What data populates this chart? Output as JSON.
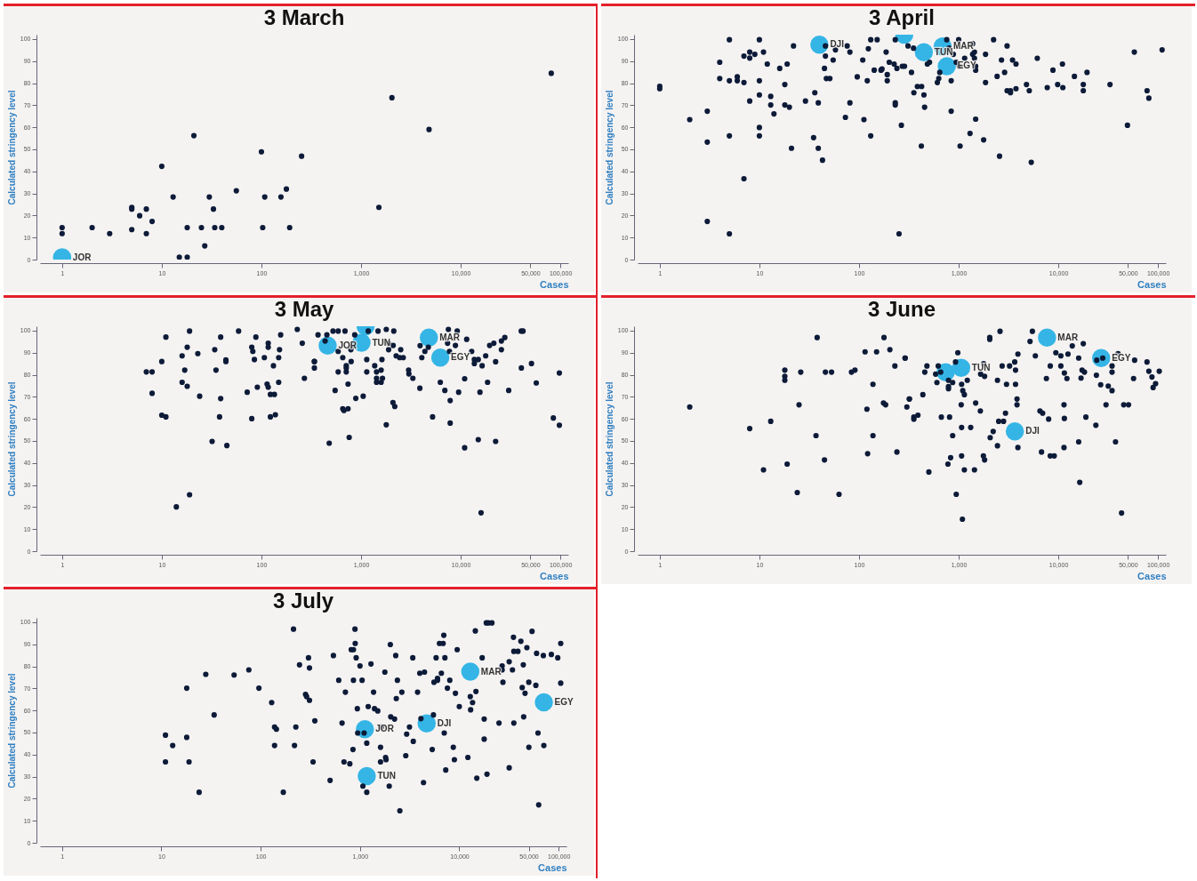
{
  "chart_data": [
    {
      "type": "scatter",
      "title": "3 March",
      "xlabel": "Cases",
      "ylabel": "Calculated stringency level",
      "log": "x",
      "marker": "circle",
      "xlim": [
        0.6,
        120000
      ],
      "ylim": [
        0,
        102
      ],
      "xticks": [
        1,
        10,
        100,
        {
          "value": 1000,
          "label": "1,000"
        },
        {
          "value": 10000,
          "label": "10,000"
        },
        {
          "value": 50000,
          "label": "50,000"
        },
        {
          "value": 100000,
          "label": "100,000"
        }
      ],
      "yticks": [
        0,
        10,
        20,
        30,
        40,
        50,
        60,
        70,
        80,
        90,
        100
      ],
      "series": [
        {
          "color": "#35b5e5",
          "x": [
            1
          ],
          "values": [
            1
          ]
        },
        {
          "color": "#0d1b38",
          "x": [
            1,
            1,
            2,
            3,
            5,
            5,
            5,
            6,
            7,
            7,
            8,
            10,
            13,
            15,
            18,
            18,
            21,
            25,
            27,
            30,
            33,
            34,
            40,
            56,
            100,
            103,
            108,
            157,
            178,
            192,
            253,
            1510,
            2040,
            4810,
            81000
          ],
          "values": [
            14.5,
            11.8,
            14.5,
            11.8,
            23.7,
            22.9,
            13.6,
            19.9,
            22.9,
            11.8,
            17.3,
            42.3,
            28.4,
            1.1,
            14.5,
            1.1,
            56.2,
            14.5,
            6.2,
            28.4,
            22.9,
            14.5,
            14.5,
            31.2,
            48.9,
            14.5,
            28.4,
            28.4,
            32,
            14.5,
            46.9,
            23.7,
            73.4,
            59,
            84.5
          ]
        }
      ],
      "annotations": [
        {
          "text": "JOR",
          "x": 1,
          "y": 1
        }
      ]
    },
    {
      "type": "scatter",
      "title": "3 April",
      "xlabel": "Cases",
      "ylabel": "Calculated stringency level",
      "log": "x",
      "marker": "circle",
      "xlim": [
        0.6,
        120000
      ],
      "ylim": [
        0,
        102
      ],
      "xticks": [
        1,
        10,
        100,
        {
          "value": 1000,
          "label": "1,000"
        },
        {
          "value": 10000,
          "label": "10,000"
        },
        {
          "value": 50000,
          "label": "50,000"
        },
        {
          "value": 100000,
          "label": "100,000"
        }
      ],
      "yticks": [
        0,
        10,
        20,
        30,
        40,
        50,
        60,
        70,
        80,
        90,
        100
      ],
      "series": [
        {
          "color": "#35b5e5",
          "x": [
            40,
            284,
            447,
            690,
            760
          ],
          "values": [
            97.5,
            102,
            94,
            96.7,
            87.7
          ]
        },
        {
          "color": "#0d1b38",
          "x": [
            1,
            1,
            2,
            3,
            3,
            3,
            4,
            4,
            5,
            5,
            5,
            5,
            6,
            6,
            7,
            7,
            7,
            8,
            8,
            8,
            9,
            10,
            10,
            10,
            10,
            10,
            11,
            12,
            13,
            13,
            14,
            16,
            18,
            18,
            19,
            20,
            21,
            22,
            29,
            35,
            36,
            39,
            39,
            43,
            45,
            46,
            46,
            47,
            51,
            55,
            58,
            73,
            76,
            81,
            81,
            96,
            109,
            112,
            121,
            124,
            131,
            131,
            142,
            152,
            166,
            170,
            187,
            192,
            192,
            201,
            225,
            231,
            231,
            231,
            240,
            252,
            266,
            272,
            286,
            310,
            336,
            352,
            355,
            385,
            425,
            422,
            448,
            455,
            485,
            510,
            611,
            631,
            646,
            759,
            800,
            841,
            841,
            884,
            944,
            1000,
            1016,
            1033,
            1148,
            1300,
            1380,
            1380,
            1440,
            1440,
            1480,
            1480,
            1480,
            1780,
            1860,
            1860,
            2240,
            2430,
            2570,
            2690,
            2890,
            3060,
            3060,
            3310,
            3310,
            3470,
            3760,
            3760,
            4790,
            5110,
            5350,
            6150,
            7740,
            8830,
            9840,
            11000,
            11100,
            14500,
            17800,
            17800,
            19400,
            33000,
            49400,
            57900,
            77700,
            81000,
            110000
          ],
          "values": [
            78.6,
            77.5,
            63.5,
            67.3,
            53.3,
            17.3,
            89.5,
            82.1,
            99.7,
            81.1,
            56.1,
            11.7,
            82.9,
            81.1,
            92.3,
            80.3,
            36.7,
            94.1,
            91.4,
            71.9,
            93.1,
            99.7,
            81.1,
            74.7,
            59.9,
            56.1,
            94.1,
            88.7,
            74,
            70.1,
            66.1,
            86.7,
            79.4,
            70.1,
            88.7,
            69.1,
            50.5,
            96.9,
            71.9,
            55.3,
            75.7,
            71.1,
            50.5,
            45.1,
            86.7,
            96.9,
            92.3,
            82.1,
            82.1,
            90.5,
            95.1,
            64.5,
            96.9,
            94.1,
            71.1,
            82.9,
            90.5,
            63.5,
            81.1,
            95.6,
            99.7,
            56.1,
            85.9,
            99.7,
            85.9,
            86.4,
            94.1,
            83.9,
            81.1,
            89.5,
            88.7,
            99.7,
            71.1,
            70.1,
            86.7,
            11.7,
            60.9,
            87.7,
            87.7,
            96.9,
            84.9,
            95.9,
            75.7,
            78.5,
            78.5,
            51.5,
            74.7,
            69.1,
            88.7,
            89.5,
            80.3,
            82.1,
            84.9,
            99.7,
            95.9,
            81.1,
            67.3,
            93.1,
            89.5,
            99.7,
            87.7,
            51.5,
            91.3,
            57.2,
            93.1,
            97.9,
            94.1,
            91.3,
            87.7,
            85.9,
            63.7,
            54.3,
            80.3,
            93.1,
            99.7,
            83.1,
            46.9,
            90.5,
            84.9,
            96.9,
            76.6,
            75.7,
            76.6,
            90.5,
            77.5,
            88.7,
            79.4,
            76.6,
            44.1,
            91.3,
            78,
            85.9,
            79.4,
            88.7,
            78,
            83.1,
            79.4,
            76.6,
            84.9,
            79.4,
            60.9,
            94.1,
            76.6,
            73.2,
            95.1
          ]
        }
      ],
      "annotations": [
        {
          "text": "DJI",
          "x": 40,
          "y": 97.5
        },
        {
          "text": "TUN",
          "x": 447,
          "y": 94
        },
        {
          "text": "MAR",
          "x": 690,
          "y": 96.7
        },
        {
          "text": "EGY",
          "x": 760,
          "y": 87.7
        }
      ]
    },
    {
      "type": "scatter",
      "title": "3 May",
      "xlabel": "Cases",
      "ylabel": "Calculated stringency level",
      "log": "x",
      "marker": "circle",
      "xlim": [
        0.6,
        120000
      ],
      "ylim": [
        0,
        102
      ],
      "xticks": [
        1,
        10,
        100,
        {
          "value": 1000,
          "label": "1,000"
        },
        {
          "value": 10000,
          "label": "10,000"
        },
        {
          "value": 50000,
          "label": "50,000"
        },
        {
          "value": 100000,
          "label": "100,000"
        }
      ],
      "yticks": [
        0,
        10,
        20,
        30,
        40,
        50,
        60,
        70,
        80,
        90,
        100
      ],
      "series": [
        {
          "color": "#35b5e5",
          "x": [
            462,
            1010,
            1110,
            4790,
            6240
          ],
          "values": [
            93.2,
            94.5,
            102,
            96.9,
            87.8
          ]
        },
        {
          "color": "#0d1b38",
          "x": [
            7,
            8,
            8,
            10,
            10,
            11,
            11,
            14,
            16,
            16,
            17,
            18,
            18,
            19,
            19,
            23,
            24,
            32,
            34,
            35,
            38,
            39,
            39,
            44,
            44,
            45,
            59,
            72,
            80,
            80,
            82,
            85,
            88,
            91,
            107,
            114,
            117,
            117,
            117,
            123,
            123,
            132,
            135,
            138,
            149,
            149,
            152,
            156,
            229,
            257,
            270,
            340,
            340,
            340,
            370,
            436,
            454,
            479,
            523,
            549,
            589,
            589,
            589,
            655,
            655,
            673,
            690,
            710,
            710,
            710,
            740,
            740,
            760,
            790,
            790,
            795,
            864,
            885,
            1050,
            1140,
            1140,
            1180,
            1370,
            1430,
            1430,
            1430,
            1480,
            1590,
            1590,
            1620,
            1640,
            1790,
            1790,
            1880,
            1890,
            2090,
            2180,
            2130,
            2100,
            2250,
            2440,
            2500,
            2650,
            3000,
            3020,
            3310,
            3890,
            3910,
            4070,
            4370,
            4730,
            5220,
            6240,
            6930,
            7380,
            7520,
            7710,
            7840,
            7840,
            8850,
            9220,
            9530,
            10950,
            10950,
            11480,
            12880,
            13700,
            13700,
            15000,
            15000,
            15600,
            16000,
            16400,
            17800,
            18600,
            19500,
            21500,
            22400,
            22400,
            25600,
            25600,
            27700,
            30300,
            40500,
            42200,
            40600,
            51300,
            57300,
            85000,
            97700,
            97700
          ],
          "values": [
            81.3,
            81.3,
            71.6,
            86,
            61.7,
            97.1,
            60.9,
            20.1,
            88.6,
            76.6,
            82.1,
            92.5,
            74.8,
            99.8,
            25.6,
            89.6,
            70.3,
            49.8,
            91.4,
            82.1,
            60.9,
            97.1,
            69.2,
            86,
            86.7,
            47.9,
            99.8,
            72.1,
            60.1,
            92.5,
            90.6,
            86.9,
            97.1,
            74.4,
            87.8,
            75.8,
            94.3,
            92.5,
            74.4,
            71.1,
            60.9,
            84.1,
            71.1,
            61.9,
            76.6,
            87.8,
            91.4,
            98.1,
            100.6,
            94.3,
            78.4,
            86,
            86,
            83.1,
            98.1,
            95.3,
            98.1,
            49,
            99.8,
            72.9,
            99.8,
            90.6,
            81.3,
            87.8,
            64.6,
            63.8,
            99.8,
            84.1,
            83.1,
            81.3,
            64.6,
            75.8,
            51.6,
            92.5,
            91.4,
            86,
            98.1,
            69.3,
            70.3,
            86.9,
            81.3,
            99.8,
            84.1,
            81.3,
            78.4,
            76.6,
            99.8,
            82.1,
            76.6,
            86.9,
            78.4,
            100.6,
            57.3,
            94.3,
            91.4,
            67.4,
            65.6,
            99.8,
            93.3,
            88.6,
            87.8,
            91.4,
            87.8,
            82.1,
            80.4,
            78.4,
            73.9,
            93.2,
            87.8,
            90.6,
            92.5,
            60.9,
            76.6,
            72.9,
            94.3,
            100.6,
            90.6,
            68.3,
            58.1,
            93.3,
            99.8,
            72.1,
            46.9,
            78.2,
            96.1,
            90.6,
            86.9,
            85.1,
            86.9,
            50.6,
            72.1,
            17.4,
            84.1,
            88.6,
            76.6,
            93.3,
            94.3,
            85.9,
            49.8,
            91.4,
            95.3,
            96.9,
            72.9,
            99.8,
            99.8,
            83.1,
            85.1,
            76.3,
            60.4,
            80.8,
            57.1
          ]
        }
      ],
      "annotations": [
        {
          "text": "JOR",
          "x": 462,
          "y": 93.2
        },
        {
          "text": "TUN",
          "x": 1010,
          "y": 94.5
        },
        {
          "text": "MAR",
          "x": 4790,
          "y": 96.9
        },
        {
          "text": "EGY",
          "x": 6240,
          "y": 87.8
        }
      ]
    },
    {
      "type": "scatter",
      "title": "3 June",
      "xlabel": "Cases",
      "ylabel": "Calculated stringency level",
      "log": "x",
      "marker": "circle",
      "xlim": [
        0.6,
        120000
      ],
      "ylim": [
        0,
        102
      ],
      "xticks": [
        1,
        10,
        100,
        {
          "value": 1000,
          "label": "1,000"
        },
        {
          "value": 10000,
          "label": "10,000"
        },
        {
          "value": 50000,
          "label": "50,000"
        },
        {
          "value": 100000,
          "label": "100,000"
        }
      ],
      "yticks": [
        0,
        10,
        20,
        30,
        40,
        50,
        60,
        70,
        80,
        90,
        100
      ],
      "series": [
        {
          "color": "#35b5e5",
          "x": [
            740,
            1060,
            7700,
            26900,
            3660
          ],
          "values": [
            81.1,
            83.2,
            96.9,
            87.6,
            54.3
          ]
        },
        {
          "color": "#0d1b38",
          "x": [
            2,
            8,
            11,
            13,
            18,
            18,
            18,
            19,
            24,
            25,
            26,
            37,
            38,
            45,
            46,
            53,
            63,
            84,
            91,
            115,
            120,
            122,
            138,
            138,
            150,
            176,
            178,
            185,
            204,
            229,
            240,
            290,
            290,
            302,
            320,
            320,
            355,
            355,
            390,
            437,
            457,
            480,
            502,
            587,
            605,
            624,
            660,
            670,
            780,
            790,
            790,
            790,
            810,
            830,
            870,
            870,
            930,
            980,
            945,
            1060,
            1070,
            1070,
            1070,
            1090,
            1100,
            1140,
            1140,
            1220,
            1320,
            1440,
            1480,
            1650,
            1660,
            1770,
            1780,
            1820,
            1820,
            2050,
            2050,
            2070,
            2220,
            2450,
            2450,
            2520,
            2600,
            2730,
            2820,
            2950,
            3020,
            3240,
            3650,
            3720,
            3720,
            3850,
            3850,
            3930,
            3930,
            5200,
            5490,
            5880,
            6540,
            6780,
            6960,
            7590,
            7990,
            8300,
            8290,
            9100,
            9440,
            10600,
            10600,
            11400,
            11400,
            11500,
            11500,
            12200,
            12500,
            13800,
            16000,
            16000,
            16400,
            16900,
            17300,
            17800,
            18300,
            18900,
            23800,
            24100,
            24300,
            26600,
            27900,
            30100,
            31700,
            34600,
            34600,
            34600,
            37500,
            39800,
            43100,
            45300,
            50700,
            56900,
            58300,
            77600,
            81000,
            87000,
            89400,
            94600,
            103000
          ],
          "values": [
            65.4,
            55.6,
            36.9,
            58.9,
            82.1,
            79.3,
            77.5,
            39.5,
            26.6,
            66.4,
            81.2,
            52.4,
            96.9,
            41.4,
            81.2,
            81.2,
            25.8,
            81.2,
            82.1,
            90.4,
            64.4,
            44.2,
            52.4,
            75.7,
            90.4,
            67.2,
            96.9,
            66.4,
            91.4,
            84,
            45,
            87.6,
            87.6,
            65.4,
            69,
            69,
            60.8,
            59.9,
            61.7,
            71,
            81.2,
            84,
            35.9,
            80.3,
            76.5,
            84,
            81.2,
            60.8,
            39.5,
            74.7,
            73.7,
            77.5,
            60.8,
            42.4,
            76.5,
            52.4,
            85.8,
            90,
            25.8,
            66.4,
            75.7,
            56.1,
            43.2,
            14.5,
            72.8,
            71,
            36.9,
            77.5,
            56.1,
            36.9,
            67.2,
            63.6,
            80.3,
            43.2,
            85,
            41.4,
            79.3,
            96.9,
            96.1,
            51.5,
            54.3,
            77.5,
            47.8,
            58.9,
            99.7,
            84,
            58.9,
            62.6,
            75.7,
            84,
            85.8,
            75.7,
            82.1,
            66.4,
            69,
            89.4,
            47,
            95.1,
            99.7,
            88.6,
            63.6,
            45,
            62.6,
            78.3,
            59.9,
            84,
            43.2,
            43.2,
            90,
            88.6,
            84,
            47,
            66.4,
            80.8,
            60.2,
            78.3,
            89.4,
            93.1,
            87.6,
            49.6,
            31.2,
            78.5,
            82.1,
            94.1,
            81.2,
            60.8,
            57.1,
            79.8,
            86.6,
            75.5,
            87.6,
            66.4,
            74.9,
            72.8,
            84,
            81.2,
            49.6,
            89.6,
            17.3,
            66.4,
            66.4,
            78.3,
            86.6,
            85.8,
            81.6,
            79,
            74.2,
            76,
            81.6
          ]
        }
      ],
      "annotations": [
        {
          "text": "TUN",
          "x": 1060,
          "y": 83.2
        },
        {
          "text": "MAR",
          "x": 7700,
          "y": 96.9
        },
        {
          "text": "EGY",
          "x": 26900,
          "y": 87.6
        },
        {
          "text": "DJI",
          "x": 3660,
          "y": 54.3
        }
      ]
    },
    {
      "type": "scatter",
      "title": "3 July",
      "xlabel": "Cases",
      "ylabel": "Calculated stringency level",
      "log": "x",
      "marker": "circle",
      "xlim": [
        0.6,
        120000
      ],
      "ylim": [
        0,
        102
      ],
      "xticks": [
        1,
        10,
        100,
        {
          "value": 1000,
          "label": "1,000"
        },
        {
          "value": 10000,
          "label": "10,000"
        },
        {
          "value": 50000,
          "label": "50,000"
        },
        {
          "value": 100000,
          "label": "100,000"
        }
      ],
      "yticks": [
        0,
        10,
        20,
        30,
        40,
        50,
        60,
        70,
        80,
        90,
        100
      ],
      "series": [
        {
          "color": "#35b5e5",
          "x": [
            1120,
            1170,
            4690,
            12900,
            71000
          ],
          "values": [
            51.5,
            30.2,
            54.1,
            77.6,
            63.7
          ]
        },
        {
          "color": "#0d1b38",
          "x": [
            11,
            11,
            13,
            18,
            18,
            19,
            24,
            28,
            34,
            54,
            76,
            96,
            129,
            138,
            144,
            138,
            169,
            214,
            219,
            226,
            246,
            283,
            290,
            303,
            310,
            310,
            337,
            351,
            500,
            540,
            611,
            660,
            690,
            713,
            790,
            816,
            859,
            850,
            859,
            890,
            895,
            915,
            940,
            948,
            1000,
            1050,
            1100,
            1170,
            1170,
            1070,
            1210,
            1290,
            1370,
            1400,
            1510,
            1610,
            1610,
            1640,
            1780,
            1810,
            1830,
            1970,
            2020,
            2040,
            2230,
            2290,
            2320,
            2380,
            2520,
            2640,
            2890,
            2950,
            3150,
            3400,
            3440,
            3800,
            4000,
            4110,
            4360,
            4460,
            5340,
            5490,
            5560,
            5840,
            6030,
            6030,
            6310,
            6600,
            6870,
            6980,
            7050,
            7160,
            7300,
            7590,
            8020,
            8700,
            8920,
            9140,
            9520,
            10000,
            12200,
            12900,
            13000,
            13600,
            14500,
            14700,
            15000,
            17000,
            17800,
            17800,
            18700,
            19600,
            21300,
            19000,
            25100,
            27000,
            27000,
            27500,
            31800,
            31800,
            35100,
            35400,
            35400,
            34300,
            38900,
            41700,
            43000,
            44100,
            44500,
            45900,
            47900,
            50100,
            50200,
            54000,
            59000,
            60000,
            62000,
            63000,
            71000,
            70200,
            84500,
            98000,
            105000,
            105000
          ],
          "values": [
            48.8,
            36.7,
            44.1,
            70.1,
            47.8,
            36.7,
            22.9,
            76.4,
            58,
            76.1,
            78.4,
            70.1,
            63.6,
            52.5,
            51.5,
            44.1,
            22.9,
            96.9,
            44.1,
            52.5,
            80.7,
            67.3,
            66.3,
            83.9,
            79.3,
            64.6,
            36.7,
            55.3,
            28.3,
            84.9,
            73.7,
            54.3,
            36.7,
            68.3,
            35.8,
            87.6,
            87.6,
            42.3,
            73.7,
            96.9,
            90.4,
            83.9,
            60.8,
            49.8,
            80.2,
            73.7,
            49.8,
            45.2,
            22.9,
            25.7,
            61.8,
            81.1,
            68.3,
            60.8,
            59.8,
            43.3,
            36.7,
            52.5,
            77.4,
            38.7,
            37.7,
            25.7,
            89.9,
            57.1,
            56.1,
            84.9,
            65.4,
            73.7,
            14.5,
            68.3,
            39.5,
            49.3,
            52.5,
            83.9,
            46,
            68.3,
            76.9,
            56.3,
            27.3,
            77.4,
            42.3,
            58,
            72.8,
            83.9,
            73.7,
            74.6,
            90.4,
            76.9,
            90.4,
            94.1,
            49.8,
            83.9,
            33,
            70.1,
            73.7,
            43.3,
            37.7,
            67.8,
            87.6,
            61.8,
            38.7,
            66.3,
            60.3,
            63.6,
            96.1,
            68.6,
            29.3,
            83.9,
            56.1,
            47,
            99.7,
            99.7,
            99.7,
            31.1,
            54.3,
            80.2,
            78.4,
            72.8,
            82.1,
            34,
            93.2,
            86.8,
            54.3,
            78.4,
            86.8,
            91.4,
            70.4,
            80.7,
            57.1,
            67.8,
            88.5,
            72.8,
            43.3,
            95.9,
            71.4,
            85.9,
            49.8,
            17.2,
            44.1,
            84.9,
            85.4,
            83.9,
            90.4,
            72.4
          ]
        }
      ],
      "annotations": [
        {
          "text": "JOR",
          "x": 1120,
          "y": 51.5
        },
        {
          "text": "TUN",
          "x": 1170,
          "y": 30.2
        },
        {
          "text": "DJI",
          "x": 4690,
          "y": 54.1
        },
        {
          "text": "MAR",
          "x": 12900,
          "y": 77.6
        },
        {
          "text": "EGY",
          "x": 71000,
          "y": 63.7
        }
      ]
    }
  ]
}
